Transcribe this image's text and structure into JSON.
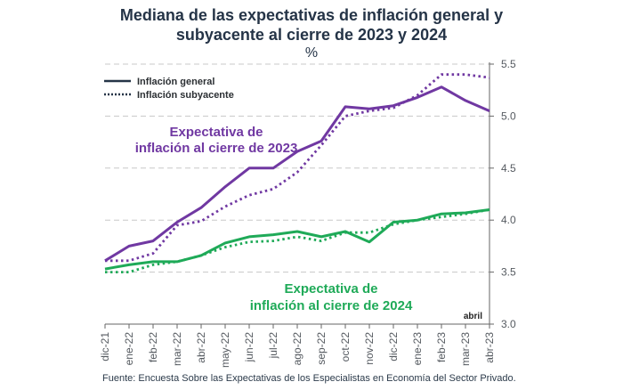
{
  "colors": {
    "title": "#253447",
    "purple": "#7038a2",
    "green": "#1faa58",
    "axis": "#666666",
    "grid": "#c8c8c8"
  },
  "chart_data": {
    "type": "line",
    "title_line1": "Mediana de las expectativas de inflación general y",
    "title_line2": "subyacente al cierre de 2023 y 2024",
    "unit_label": "%",
    "xlabel": "",
    "ylabel": "",
    "y_axis_position": "right",
    "ylim": [
      3.0,
      5.5
    ],
    "yticks": [
      3.0,
      3.5,
      4.0,
      4.5,
      5.0,
      5.5
    ],
    "ytick_labels": [
      "3.0",
      "3.5",
      "4.0",
      "4.5",
      "5.0",
      "5.5"
    ],
    "grid": "horizontal dashed",
    "categories": [
      "dic-21",
      "ene-22",
      "feb-22",
      "mar-22",
      "abr-22",
      "may-22",
      "jun-22",
      "jul-22",
      "ago-22",
      "sep-22",
      "oct-22",
      "nov-22",
      "dic-22",
      "ene-23",
      "feb-23",
      "mar-23",
      "abr-23"
    ],
    "legend": {
      "placement": "top-left",
      "entries": [
        {
          "label": "Inflación general",
          "style": "solid"
        },
        {
          "label": "Inflación subyacente",
          "style": "dotted"
        }
      ]
    },
    "series": [
      {
        "name": "Inflación general 2023",
        "style": "solid",
        "color": "purple",
        "values": [
          3.61,
          3.75,
          3.8,
          3.98,
          4.12,
          4.32,
          4.5,
          4.5,
          4.66,
          4.76,
          5.09,
          5.07,
          5.1,
          5.18,
          5.28,
          5.15,
          5.05
        ]
      },
      {
        "name": "Inflación subyacente 2023",
        "style": "dotted",
        "color": "purple",
        "values": [
          3.61,
          3.61,
          3.68,
          3.95,
          3.99,
          4.13,
          4.24,
          4.3,
          4.46,
          4.72,
          5.0,
          5.05,
          5.08,
          5.2,
          5.4,
          5.4,
          5.37
        ]
      },
      {
        "name": "Inflación general 2024",
        "style": "solid",
        "color": "green",
        "values": [
          3.53,
          3.57,
          3.6,
          3.6,
          3.66,
          3.78,
          3.84,
          3.86,
          3.89,
          3.84,
          3.89,
          3.79,
          3.98,
          4.0,
          4.06,
          4.07,
          4.1
        ]
      },
      {
        "name": "Inflación subyacente 2024",
        "style": "dotted",
        "color": "green",
        "values": [
          3.5,
          3.5,
          3.57,
          3.6,
          3.66,
          3.74,
          3.79,
          3.8,
          3.84,
          3.8,
          3.88,
          3.88,
          3.96,
          4.0,
          4.03,
          4.06,
          4.1
        ]
      }
    ],
    "annotations": {
      "purple_line1": "Expectativa de",
      "purple_line2": "inflación al cierre de 2023",
      "green_line1": "Expectativa de",
      "green_line2": "inflación al cierre de 2024",
      "month_marker": "abril"
    }
  },
  "footer": "Fuente: Encuesta Sobre las Expectativas de los Especialistas en Economía del Sector Privado."
}
